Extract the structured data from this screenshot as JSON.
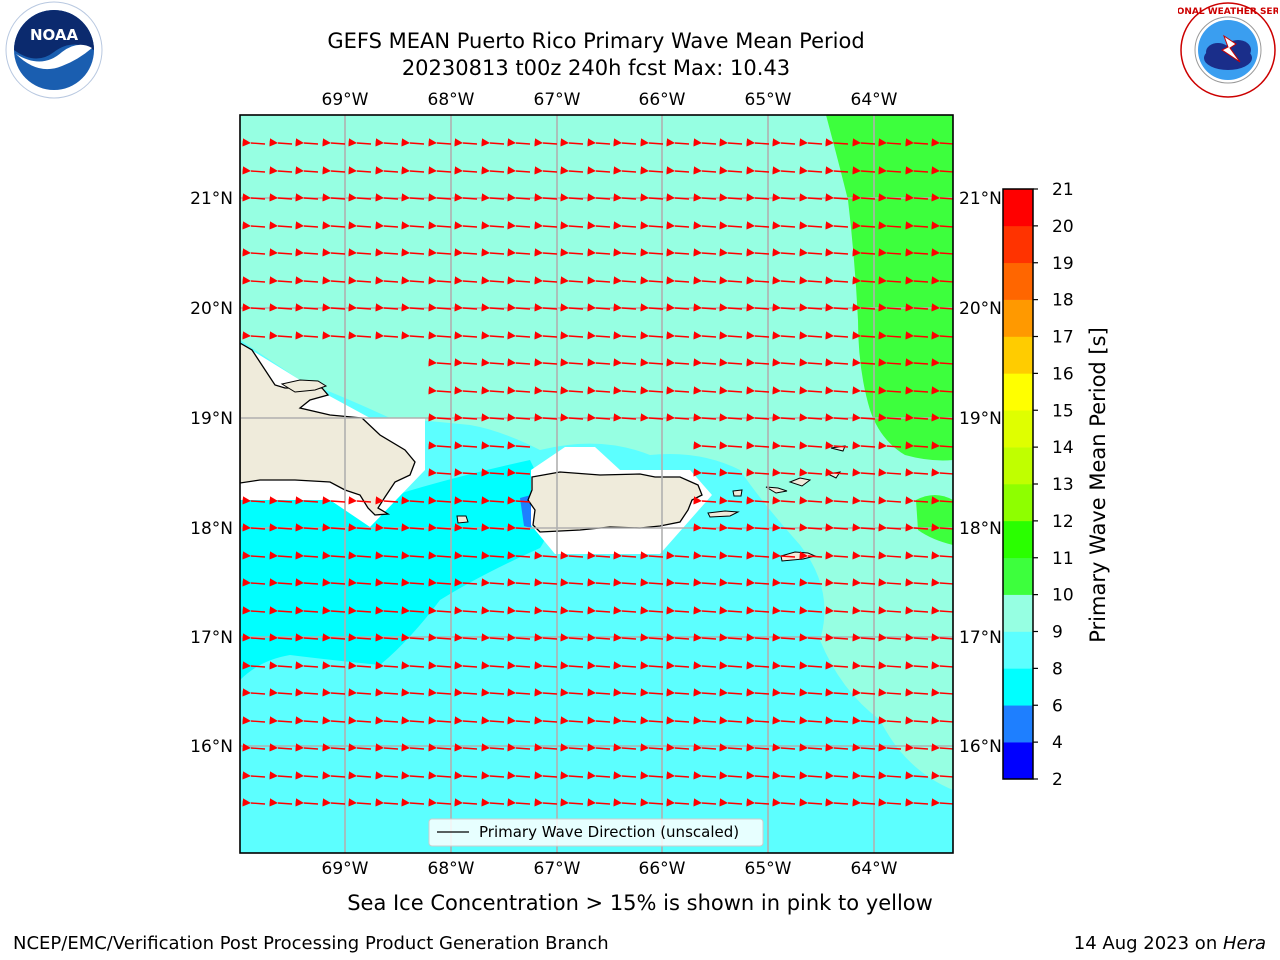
{
  "title": {
    "line1": "GEFS MEAN Puerto Rico Primary Wave Mean Period",
    "line2": "20230813 t00z 240h fcst   Max: 10.43"
  },
  "map": {
    "lon_labels": [
      "69°W",
      "68°W",
      "67°W",
      "66°W",
      "65°W",
      "64°W"
    ],
    "lat_labels": [
      "21°N",
      "20°N",
      "19°N",
      "18°N",
      "17°N",
      "16°N"
    ],
    "legend_label": "Primary Wave Direction (unscaled)",
    "arrow_color": "#ff0000",
    "land_color": "#efebdb"
  },
  "colorbar": {
    "label": "Primary Wave Mean Period [s]",
    "ticks": [
      "2",
      "4",
      "6",
      "8",
      "9",
      "10",
      "11",
      "12",
      "13",
      "14",
      "15",
      "16",
      "17",
      "18",
      "19",
      "20",
      "21"
    ],
    "colors": [
      "#0000ff",
      "#1e7fff",
      "#00ffff",
      "#5cffff",
      "#96ffe2",
      "#3dff3d",
      "#2aff00",
      "#8eff00",
      "#c0ff00",
      "#dfff00",
      "#ffff00",
      "#ffcc00",
      "#ff9900",
      "#ff6600",
      "#ff3300",
      "#ff0000"
    ]
  },
  "logos": {
    "noaa_text": "NOAA",
    "nws_text": "NATIONAL WEATHER SERVICE"
  },
  "footer": {
    "note": "Sea Ice Concentration > 15% is shown in pink to yellow",
    "left": "NCEP/EMC/Verification Post Processing Product Generation Branch",
    "right_prefix": "14 Aug 2023 on ",
    "right_host": "Hera"
  }
}
